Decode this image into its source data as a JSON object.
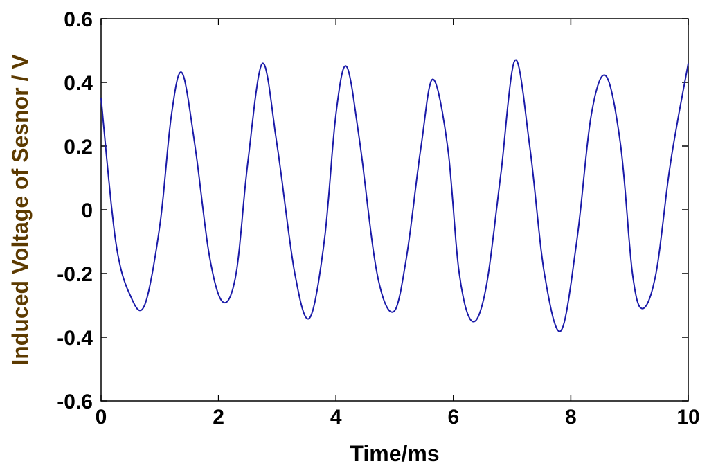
{
  "chart_data": {
    "type": "line",
    "title": "",
    "xlabel": "Time/ms",
    "ylabel": "Induced Voltage of Sesnor / V",
    "xlim": [
      0,
      10
    ],
    "ylim": [
      -0.6,
      0.6
    ],
    "xticks": [
      0,
      2,
      4,
      6,
      8,
      10
    ],
    "xtick_labels": [
      "0",
      "2",
      "4",
      "6",
      "8",
      "10"
    ],
    "yticks": [
      0.6,
      0.4,
      0.2,
      0,
      -0.2,
      -0.4,
      -0.6
    ],
    "ytick_labels": [
      "0.6",
      "0.4",
      "0.2",
      "0",
      "-0.2",
      "-0.4",
      "-0.6"
    ],
    "grid": false,
    "colors": {
      "line": "#1a1aa8",
      "axis": "#000000",
      "ylabel": "#5c3a00"
    },
    "series": [
      {
        "x": [
          0.0,
          0.25,
          0.5,
          0.74,
          1.0,
          1.2,
          1.38,
          1.6,
          1.85,
          2.08,
          2.3,
          2.5,
          2.75,
          3.0,
          3.3,
          3.55,
          3.8,
          4.0,
          4.18,
          4.4,
          4.7,
          4.98,
          5.2,
          5.45,
          5.65,
          5.9,
          6.1,
          6.32,
          6.55,
          6.8,
          7.05,
          7.3,
          7.55,
          7.83,
          8.1,
          8.35,
          8.6,
          8.85,
          9.05,
          9.22,
          9.45,
          9.7,
          10.0
        ],
        "y": [
          0.35,
          -0.1,
          -0.27,
          -0.3,
          -0.05,
          0.3,
          0.43,
          0.2,
          -0.15,
          -0.29,
          -0.2,
          0.15,
          0.46,
          0.2,
          -0.2,
          -0.34,
          -0.1,
          0.3,
          0.45,
          0.22,
          -0.2,
          -0.32,
          -0.15,
          0.2,
          0.41,
          0.2,
          -0.2,
          -0.35,
          -0.25,
          0.1,
          0.47,
          0.2,
          -0.2,
          -0.38,
          -0.1,
          0.3,
          0.42,
          0.2,
          -0.2,
          -0.31,
          -0.2,
          0.15,
          0.46
        ]
      }
    ]
  }
}
